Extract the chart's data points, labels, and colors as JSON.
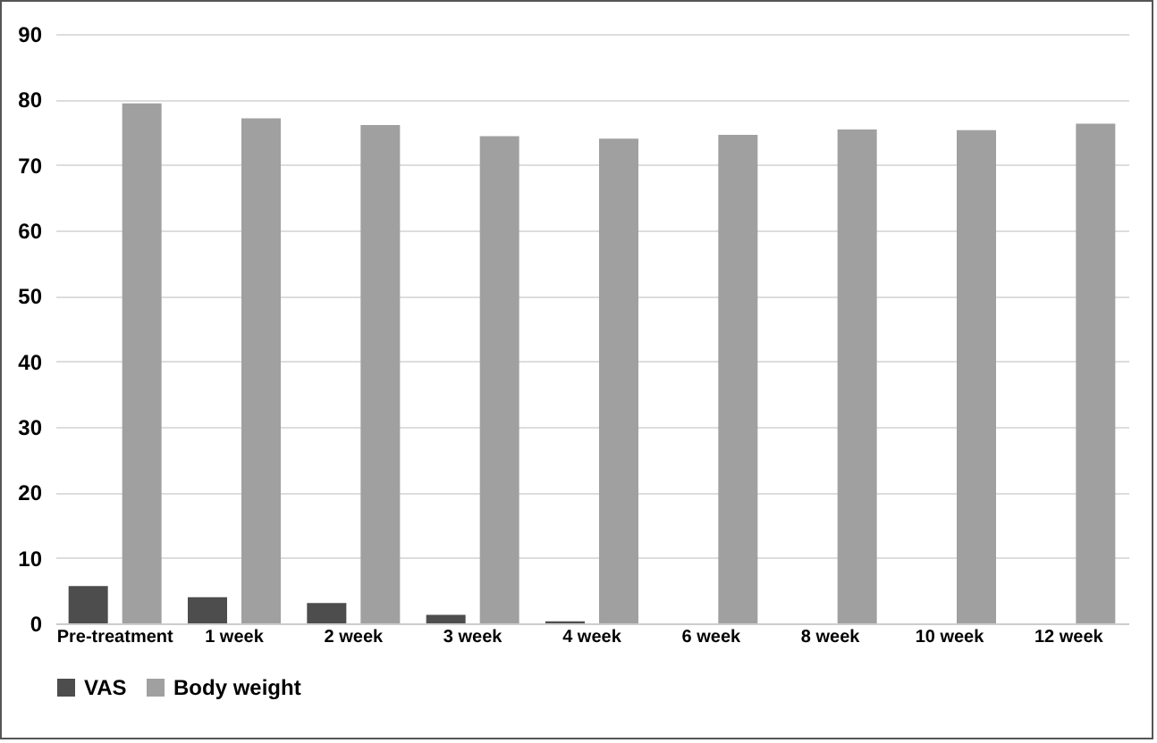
{
  "chart_data": {
    "type": "bar",
    "categories": [
      "Pre-treatment",
      "1 week",
      "2 week",
      "3 week",
      "4 week",
      "6 week",
      "8 week",
      "10 week",
      "12 week"
    ],
    "series": [
      {
        "name": "VAS",
        "color": "#4d4d4d",
        "values": [
          5.7,
          4.0,
          3.1,
          1.3,
          0.3,
          0,
          0,
          0,
          0
        ]
      },
      {
        "name": "Body weight",
        "color": "#a0a0a0",
        "values": [
          79.4,
          77.1,
          76.1,
          74.4,
          74.0,
          74.6,
          75.4,
          75.3,
          76.3
        ]
      }
    ],
    "ylim": [
      0,
      90
    ],
    "yticks": [
      0,
      10,
      20,
      30,
      40,
      50,
      60,
      70,
      80,
      90
    ],
    "grid": "y",
    "legend": "bottom"
  }
}
